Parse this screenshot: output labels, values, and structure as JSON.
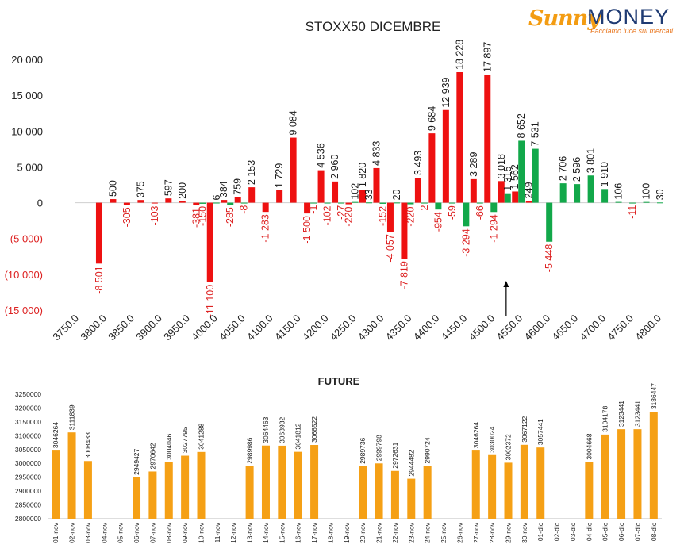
{
  "logo": {
    "brand_part1": "Sunny",
    "brand_part2": "MONEY",
    "tagline": "Facciamo luce sui mercati"
  },
  "colors": {
    "call": "#ee1111",
    "put": "#12a84a",
    "future_bar": "#f5a015",
    "negative_tick": "#dd2222",
    "text": "#222222"
  },
  "chart_data": [
    {
      "type": "bar",
      "title": "STOXX50 DICEMBRE",
      "xlabel": "",
      "ylabel": "",
      "ylim": [
        -15000,
        20000
      ],
      "y_ticks": [
        {
          "value": 20000,
          "label": "20 000"
        },
        {
          "value": 15000,
          "label": "15 000"
        },
        {
          "value": 10000,
          "label": "10 000"
        },
        {
          "value": 5000,
          "label": "5 000"
        },
        {
          "value": 0,
          "label": "0"
        },
        {
          "value": -5000,
          "label": "(5 000)"
        },
        {
          "value": -10000,
          "label": "(10 000)"
        },
        {
          "value": -15000,
          "label": "(15 000)"
        }
      ],
      "x_ticks": [
        "3750.0",
        "3800.0",
        "3850.0",
        "3900.0",
        "3950.0",
        "4000.0",
        "4050.0",
        "4100.0",
        "4150.0",
        "4200.0",
        "4250.0",
        "4300.0",
        "4350.0",
        "4400.0",
        "4450.0",
        "4500.0",
        "4550.0",
        "4600.0",
        "4650.0",
        "4700.0",
        "4750.0",
        "4800.0"
      ],
      "strike_step": 25,
      "current_level_marker": 4528,
      "grid": false,
      "series": [
        {
          "role": "call",
          "points": [
            {
              "strike": 3800,
              "value": -8501,
              "label": "-8 501"
            },
            {
              "strike": 3825,
              "value": 500,
              "label": "500"
            },
            {
              "strike": 3850,
              "value": -305,
              "label": "-305"
            },
            {
              "strike": 3875,
              "value": 375,
              "label": "375"
            },
            {
              "strike": 3900,
              "value": -103,
              "label": "-103"
            },
            {
              "strike": 3925,
              "value": 597,
              "label": "597"
            },
            {
              "strike": 3950,
              "value": 200,
              "label": "200"
            },
            {
              "strike": 3975,
              "value": -381,
              "label": "-381"
            },
            {
              "strike": 4000,
              "value": -11100,
              "label": "-11 100"
            },
            {
              "strike": 4025,
              "value": 384,
              "label": "384"
            },
            {
              "strike": 4050,
              "value": 759,
              "label": "759"
            },
            {
              "strike": 4075,
              "value": 2153,
              "label": "2 153"
            },
            {
              "strike": 4100,
              "value": -1283,
              "label": "-1 283"
            },
            {
              "strike": 4125,
              "value": 1729,
              "label": "1 729"
            },
            {
              "strike": 4150,
              "value": 9084,
              "label": "9 084"
            },
            {
              "strike": 4175,
              "value": -1500,
              "label": "-1 500"
            },
            {
              "strike": 4200,
              "value": 4536,
              "label": "4 536"
            },
            {
              "strike": 4225,
              "value": 2960,
              "label": "2 960"
            },
            {
              "strike": 4250,
              "value": -220,
              "label": "-220"
            },
            {
              "strike": 4275,
              "value": 1820,
              "label": "1 820"
            },
            {
              "strike": 4300,
              "value": 4833,
              "label": "4 833"
            },
            {
              "strike": 4325,
              "value": -4057,
              "label": "-4 057"
            },
            {
              "strike": 4350,
              "value": -7819,
              "label": "-7 819"
            },
            {
              "strike": 4375,
              "value": 3493,
              "label": "3 493"
            },
            {
              "strike": 4400,
              "value": 9684,
              "label": "9 684"
            },
            {
              "strike": 4425,
              "value": 12939,
              "label": "12 939"
            },
            {
              "strike": 4450,
              "value": 18228,
              "label": "18 228"
            },
            {
              "strike": 4475,
              "value": 3289,
              "label": "3 289"
            },
            {
              "strike": 4500,
              "value": 17897,
              "label": "17 897"
            },
            {
              "strike": 4525,
              "value": 3018,
              "label": "3 018"
            },
            {
              "strike": 4550,
              "value": 1562,
              "label": "1 562"
            },
            {
              "strike": 4575,
              "value": 249,
              "label": "249"
            }
          ]
        },
        {
          "role": "put",
          "points": [
            {
              "strike": 3975,
              "value": -150,
              "label": "-150"
            },
            {
              "strike": 4000,
              "value": 6,
              "label": "6"
            },
            {
              "strike": 4025,
              "value": -285,
              "label": "-285"
            },
            {
              "strike": 4050,
              "value": -8,
              "label": "-8"
            },
            {
              "strike": 4175,
              "value": -1,
              "label": "-1"
            },
            {
              "strike": 4200,
              "value": -102,
              "label": "-102"
            },
            {
              "strike": 4225,
              "value": -27,
              "label": "-27"
            },
            {
              "strike": 4250,
              "value": 102,
              "label": "102"
            },
            {
              "strike": 4275,
              "value": 33,
              "label": "33"
            },
            {
              "strike": 4300,
              "value": -152,
              "label": "-152"
            },
            {
              "strike": 4325,
              "value": 20,
              "label": "20"
            },
            {
              "strike": 4350,
              "value": -220,
              "label": "-220"
            },
            {
              "strike": 4375,
              "value": -2,
              "label": "-2"
            },
            {
              "strike": 4400,
              "value": -954,
              "label": "-954"
            },
            {
              "strike": 4425,
              "value": -59,
              "label": "-59"
            },
            {
              "strike": 4450,
              "value": -3294,
              "label": "-3 294"
            },
            {
              "strike": 4475,
              "value": -66,
              "label": "-66"
            },
            {
              "strike": 4500,
              "value": -1294,
              "label": "-1 294"
            },
            {
              "strike": 4525,
              "value": 1315,
              "label": "1 315"
            },
            {
              "strike": 4550,
              "value": 8652,
              "label": "8 652"
            },
            {
              "strike": 4575,
              "value": 7531,
              "label": "7 531"
            },
            {
              "strike": 4600,
              "value": -5448,
              "label": "-5 448"
            },
            {
              "strike": 4625,
              "value": 2706,
              "label": "2 706"
            },
            {
              "strike": 4650,
              "value": 2596,
              "label": "2 596"
            },
            {
              "strike": 4675,
              "value": 3801,
              "label": "3 801"
            },
            {
              "strike": 4700,
              "value": 1910,
              "label": "1 910"
            },
            {
              "strike": 4725,
              "value": 106,
              "label": "106"
            },
            {
              "strike": 4750,
              "value": -11,
              "label": "-11"
            },
            {
              "strike": 4775,
              "value": 100,
              "label": "100"
            },
            {
              "strike": 4800,
              "value": 30,
              "label": "30"
            }
          ]
        }
      ]
    },
    {
      "type": "bar",
      "title": "FUTURE",
      "xlabel": "",
      "ylabel": "",
      "ylim": [
        2800000,
        3250000
      ],
      "y_ticks": [
        "3250000",
        "3200000",
        "3150000",
        "3100000",
        "3050000",
        "3000000",
        "2950000",
        "2900000",
        "2850000",
        "2800000"
      ],
      "grid": false,
      "categories": [
        "01-nov",
        "02-nov",
        "03-nov",
        "04-nov",
        "05-nov",
        "06-nov",
        "07-nov",
        "08-nov",
        "09-nov",
        "10-nov",
        "11-nov",
        "12-nov",
        "13-nov",
        "14-nov",
        "15-nov",
        "16-nov",
        "17-nov",
        "18-nov",
        "19-nov",
        "20-nov",
        "21-nov",
        "22-nov",
        "23-nov",
        "24-nov",
        "25-nov",
        "26-nov",
        "27-nov",
        "28-nov",
        "29-nov",
        "30-nov",
        "01-dic",
        "02-dic",
        "03-dic",
        "04-dic",
        "05-dic",
        "06-dic",
        "07-dic",
        "08-dic"
      ],
      "values": [
        3046264,
        3111839,
        3008483,
        null,
        null,
        2949427,
        2970642,
        3004046,
        3027795,
        3041288,
        null,
        null,
        2989986,
        3064463,
        3063932,
        3041812,
        3066522,
        null,
        null,
        2989736,
        2999798,
        2972631,
        2944482,
        2990724,
        null,
        null,
        3046264,
        3030024,
        3002372,
        3067122,
        3057441,
        null,
        null,
        3004668,
        3104178,
        3123441,
        3123441,
        3186447
      ]
    }
  ]
}
